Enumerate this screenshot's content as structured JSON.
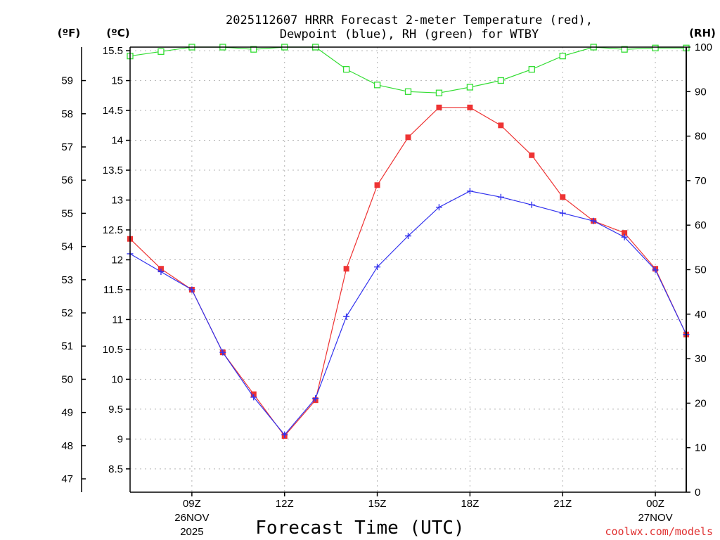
{
  "chart_data": {
    "type": "line",
    "title_line1": "2025112607 HRRR Forecast 2-meter Temperature (red),",
    "title_line2": "Dewpoint (blue), RH (green) for WTBY",
    "xlabel": "Forecast Time (UTC)",
    "credit": "coolwx.com/models",
    "unit_f": "(ºF)",
    "unit_c": "(ºC)",
    "unit_rh": "(RH)",
    "x_hours": [
      7,
      8,
      9,
      10,
      11,
      12,
      13,
      14,
      15,
      16,
      17,
      18,
      19,
      20,
      21,
      22,
      23,
      24,
      25
    ],
    "xlim": [
      7,
      25
    ],
    "x_ticks": [
      {
        "hour": 9,
        "label": "09Z",
        "label2": "26NOV",
        "label3": "2025"
      },
      {
        "hour": 12,
        "label": "12Z"
      },
      {
        "hour": 15,
        "label": "15Z"
      },
      {
        "hour": 18,
        "label": "18Z"
      },
      {
        "hour": 21,
        "label": "21Z"
      },
      {
        "hour": 24,
        "label": "00Z",
        "label2": "27NOV"
      }
    ],
    "ylim_c": [
      8.11,
      15.56
    ],
    "ylim_rh": [
      0,
      100
    ],
    "yticks_c": [
      "8.5",
      "9",
      "9.5",
      "10",
      "10.5",
      "11",
      "11.5",
      "12",
      "12.5",
      "13",
      "13.5",
      "14",
      "14.5",
      "15",
      "15.5"
    ],
    "yticks_f": [
      "47",
      "48",
      "49",
      "50",
      "51",
      "52",
      "53",
      "54",
      "55",
      "56",
      "57",
      "58",
      "59"
    ],
    "yticks_rh": [
      "0",
      "10",
      "20",
      "30",
      "40",
      "50",
      "60",
      "70",
      "80",
      "90",
      "100"
    ],
    "series": [
      {
        "name": "Temperature",
        "color": "#ee3333",
        "marker": "filled-square",
        "unit": "C",
        "values": [
          12.35,
          11.85,
          11.5,
          10.45,
          9.75,
          9.05,
          9.65,
          11.85,
          13.25,
          14.05,
          14.55,
          14.55,
          14.25,
          13.75,
          13.05,
          12.65,
          12.45,
          11.85,
          10.75
        ]
      },
      {
        "name": "Dewpoint",
        "color": "#3333ee",
        "marker": "plus",
        "unit": "C",
        "values": [
          12.1,
          11.8,
          11.5,
          10.45,
          9.7,
          9.07,
          9.68,
          11.05,
          11.88,
          12.4,
          12.88,
          13.15,
          13.05,
          12.92,
          12.78,
          12.65,
          12.38,
          11.83,
          10.75
        ]
      },
      {
        "name": "RH",
        "color": "#33dd33",
        "marker": "open-square",
        "unit": "%",
        "values": [
          98,
          99,
          100,
          100,
          99.5,
          100,
          100,
          95,
          91.5,
          90,
          89.7,
          91,
          92.5,
          95,
          98,
          100,
          99.5,
          99.8,
          99.8
        ]
      }
    ]
  }
}
